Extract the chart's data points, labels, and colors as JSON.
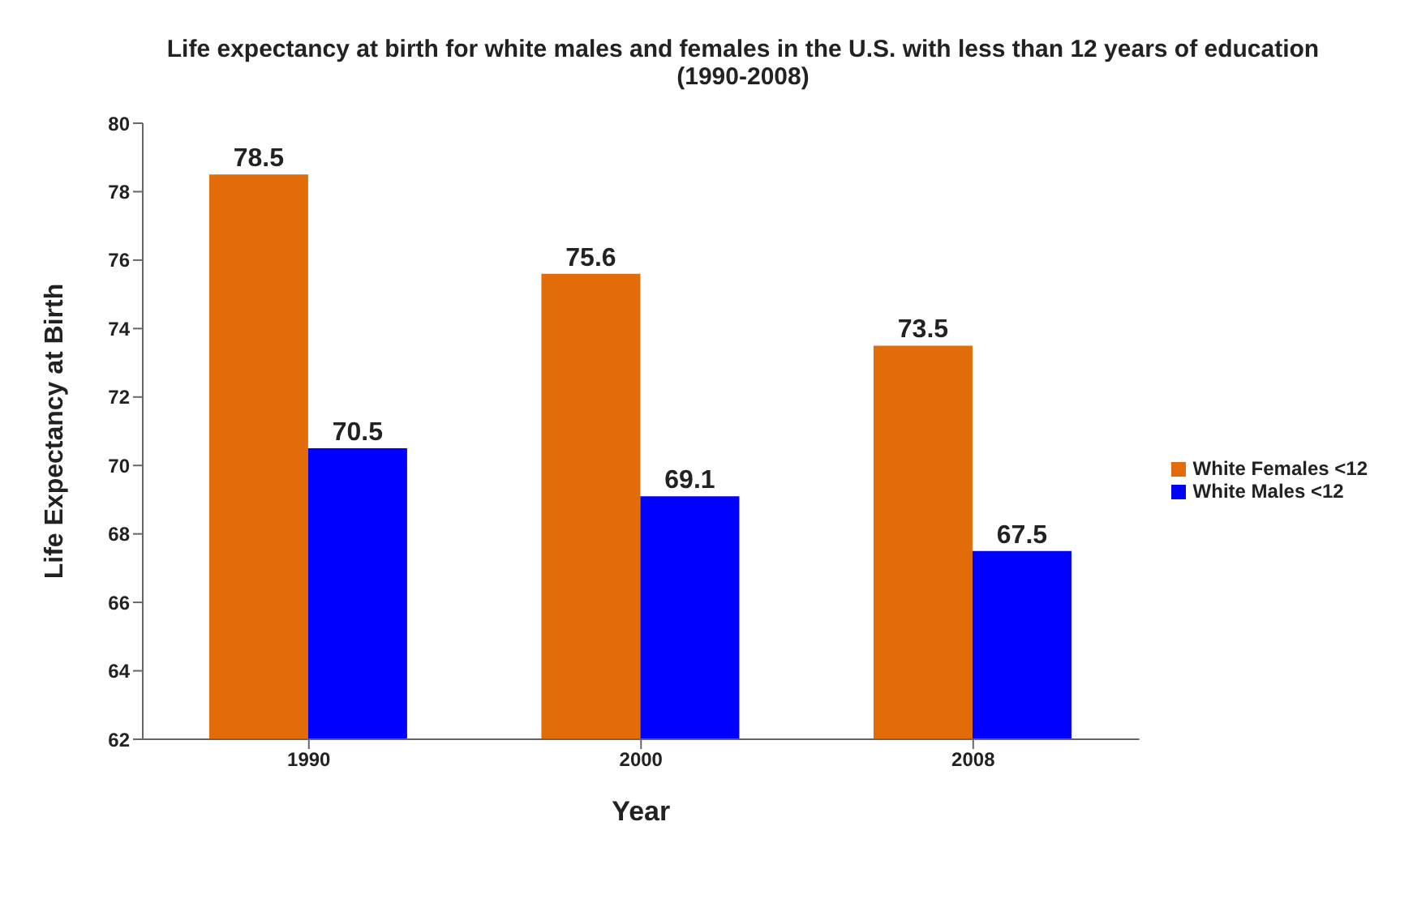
{
  "chart_data": {
    "type": "bar",
    "title": "Life expectancy at birth for white males and females in the U.S. with less than 12 years of education (1990-2008)",
    "xlabel": "Year",
    "ylabel": "Life Expectancy at Birth",
    "categories": [
      "1990",
      "2000",
      "2008"
    ],
    "series": [
      {
        "name": "White Females <12",
        "color": "#e36c0a",
        "values": [
          78.5,
          75.6,
          73.5
        ]
      },
      {
        "name": "White Males <12",
        "color": "#0000ff",
        "values": [
          70.5,
          69.1,
          67.5
        ]
      }
    ],
    "ylim": [
      62,
      80
    ],
    "yticks": [
      62,
      64,
      66,
      68,
      70,
      72,
      74,
      76,
      78,
      80
    ],
    "data_labels": true,
    "legend": "right",
    "grid": false
  }
}
